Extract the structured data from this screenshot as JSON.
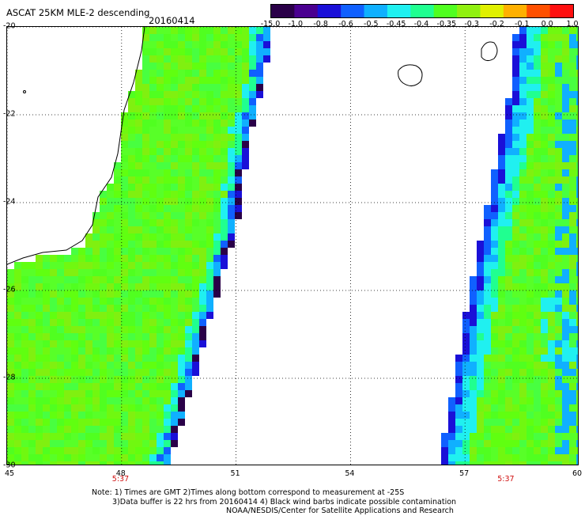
{
  "header": {
    "title": "ASCAT 25KM MLE-2 descending",
    "date": "20160414"
  },
  "colorbar": {
    "labels": [
      "-15.0",
      "-1.0",
      "-0.8",
      "-0.6",
      "-0.5",
      "-0.45",
      "-0.4",
      "-0.35",
      "-0.3",
      "-0.2",
      "-0.1",
      "0.0",
      "1.0"
    ],
    "colors": [
      "#2a0048",
      "#4a0090",
      "#1a10d8",
      "#1060ff",
      "#10b0ff",
      "#20f0f0",
      "#20ff90",
      "#50ff20",
      "#90f010",
      "#e0f000",
      "#ffb000",
      "#ff5000",
      "#ff1010"
    ]
  },
  "axes": {
    "lat_labels": [
      "-20",
      "-22",
      "-24",
      "-26",
      "-28",
      "-30"
    ],
    "lon_labels": [
      "45",
      "48",
      "51",
      "54",
      "57",
      "60"
    ],
    "lat_range": [
      -30,
      -20
    ],
    "lon_range": [
      45,
      60
    ],
    "grid": "dotted"
  },
  "pass_times": [
    {
      "label": "5:37",
      "lon": 48.2
    },
    {
      "label": "5:37",
      "lon": 58.3
    }
  ],
  "notes": [
    "Note: 1) Times are GMT 2)Times along bottom correspond to measurement at -25S",
    "3)Data buffer is 22 hrs from 20160414 4) Black wind barbs indicate possible contamination",
    "NOAA/NESDIS/Center for Satellite Applications and Research"
  ]
}
